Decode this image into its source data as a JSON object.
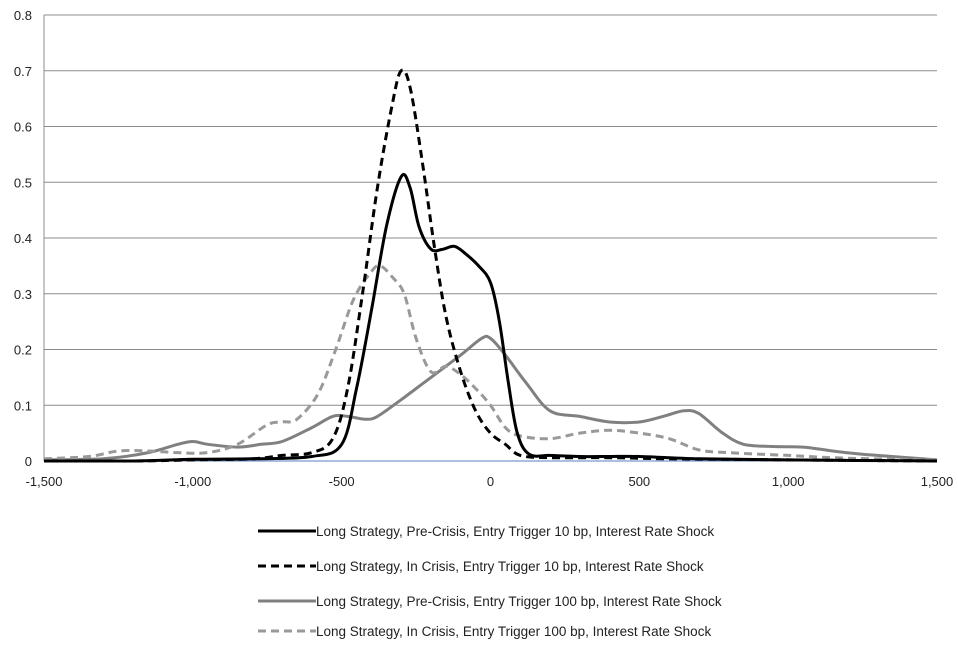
{
  "chart_data": {
    "type": "line",
    "title": "",
    "xlabel": "",
    "ylabel": "",
    "xlim": [
      -1500,
      1500
    ],
    "ylim": [
      0,
      0.8
    ],
    "x_ticks": [
      -1500,
      -1000,
      -500,
      0,
      500,
      1000,
      1500
    ],
    "x_tick_labels": [
      "-1,500",
      "-1,000",
      "-500",
      "0",
      "500",
      "1,000",
      "1,500"
    ],
    "y_ticks": [
      0,
      0.1,
      0.2,
      0.3,
      0.4,
      0.5,
      0.6,
      0.7,
      0.8
    ],
    "y_tick_labels": [
      "0",
      "0.1",
      "0.2",
      "0.3",
      "0.4",
      "0.5",
      "0.6",
      "0.7",
      "0.8"
    ],
    "grid": "horizontal",
    "legend_position": "bottom",
    "series": [
      {
        "name": "Long Strategy, Pre-Crisis, Entry Trigger 10 bp, Interest Rate Shock",
        "color": "#000000",
        "style": "solid",
        "points": [
          [
            -1500,
            0
          ],
          [
            -1200,
            0
          ],
          [
            -1000,
            0.003
          ],
          [
            -800,
            0.004
          ],
          [
            -600,
            0.008
          ],
          [
            -500,
            0.03
          ],
          [
            -450,
            0.13
          ],
          [
            -400,
            0.27
          ],
          [
            -350,
            0.42
          ],
          [
            -300,
            0.51
          ],
          [
            -270,
            0.49
          ],
          [
            -240,
            0.42
          ],
          [
            -200,
            0.38
          ],
          [
            -160,
            0.38
          ],
          [
            -120,
            0.385
          ],
          [
            -80,
            0.37
          ],
          [
            -40,
            0.35
          ],
          [
            0,
            0.32
          ],
          [
            30,
            0.25
          ],
          [
            60,
            0.14
          ],
          [
            90,
            0.05
          ],
          [
            130,
            0.012
          ],
          [
            200,
            0.01
          ],
          [
            300,
            0.008
          ],
          [
            400,
            0.008
          ],
          [
            500,
            0.008
          ],
          [
            700,
            0.004
          ],
          [
            1000,
            0.002
          ],
          [
            1500,
            0
          ]
        ]
      },
      {
        "name": "Long Strategy, In Crisis, Entry Trigger 10 bp, Interest Rate Shock",
        "color": "#000000",
        "style": "dashed",
        "points": [
          [
            -1500,
            0
          ],
          [
            -1200,
            0
          ],
          [
            -1000,
            0.002
          ],
          [
            -800,
            0.004
          ],
          [
            -700,
            0.01
          ],
          [
            -600,
            0.015
          ],
          [
            -530,
            0.04
          ],
          [
            -480,
            0.13
          ],
          [
            -430,
            0.3
          ],
          [
            -380,
            0.49
          ],
          [
            -330,
            0.64
          ],
          [
            -300,
            0.7
          ],
          [
            -270,
            0.67
          ],
          [
            -230,
            0.54
          ],
          [
            -190,
            0.39
          ],
          [
            -150,
            0.26
          ],
          [
            -100,
            0.16
          ],
          [
            -50,
            0.09
          ],
          [
            0,
            0.05
          ],
          [
            50,
            0.03
          ],
          [
            100,
            0.01
          ],
          [
            200,
            0.006
          ],
          [
            400,
            0.006
          ],
          [
            600,
            0.004
          ],
          [
            1000,
            0.002
          ],
          [
            1500,
            0
          ]
        ]
      },
      {
        "name": "Long Strategy, Pre-Crisis, Entry Trigger 100 bp, Interest Rate Shock",
        "color": "#808080",
        "style": "solid",
        "points": [
          [
            -1500,
            0.002
          ],
          [
            -1300,
            0.004
          ],
          [
            -1150,
            0.015
          ],
          [
            -1050,
            0.03
          ],
          [
            -1000,
            0.035
          ],
          [
            -950,
            0.03
          ],
          [
            -850,
            0.025
          ],
          [
            -770,
            0.03
          ],
          [
            -700,
            0.035
          ],
          [
            -600,
            0.06
          ],
          [
            -530,
            0.08
          ],
          [
            -480,
            0.08
          ],
          [
            -420,
            0.075
          ],
          [
            -380,
            0.08
          ],
          [
            -300,
            0.11
          ],
          [
            -200,
            0.15
          ],
          [
            -100,
            0.19
          ],
          [
            -30,
            0.22
          ],
          [
            0,
            0.22
          ],
          [
            50,
            0.19
          ],
          [
            120,
            0.14
          ],
          [
            200,
            0.09
          ],
          [
            300,
            0.08
          ],
          [
            400,
            0.07
          ],
          [
            500,
            0.07
          ],
          [
            580,
            0.08
          ],
          [
            650,
            0.09
          ],
          [
            700,
            0.085
          ],
          [
            780,
            0.05
          ],
          [
            850,
            0.03
          ],
          [
            950,
            0.026
          ],
          [
            1050,
            0.025
          ],
          [
            1150,
            0.018
          ],
          [
            1250,
            0.012
          ],
          [
            1350,
            0.008
          ],
          [
            1500,
            0.002
          ]
        ]
      },
      {
        "name": "Long Strategy, In Crisis, Entry Trigger 100 bp, Interest Rate Shock",
        "color": "#999999",
        "style": "dashed",
        "points": [
          [
            -1500,
            0.004
          ],
          [
            -1350,
            0.008
          ],
          [
            -1250,
            0.018
          ],
          [
            -1150,
            0.018
          ],
          [
            -1050,
            0.015
          ],
          [
            -950,
            0.015
          ],
          [
            -850,
            0.03
          ],
          [
            -750,
            0.065
          ],
          [
            -700,
            0.07
          ],
          [
            -650,
            0.075
          ],
          [
            -580,
            0.12
          ],
          [
            -520,
            0.2
          ],
          [
            -460,
            0.29
          ],
          [
            -400,
            0.34
          ],
          [
            -370,
            0.35
          ],
          [
            -330,
            0.33
          ],
          [
            -290,
            0.3
          ],
          [
            -250,
            0.22
          ],
          [
            -200,
            0.16
          ],
          [
            -150,
            0.17
          ],
          [
            -100,
            0.155
          ],
          [
            -50,
            0.13
          ],
          [
            0,
            0.1
          ],
          [
            50,
            0.06
          ],
          [
            100,
            0.045
          ],
          [
            200,
            0.04
          ],
          [
            300,
            0.05
          ],
          [
            400,
            0.055
          ],
          [
            500,
            0.05
          ],
          [
            600,
            0.04
          ],
          [
            700,
            0.02
          ],
          [
            800,
            0.015
          ],
          [
            1000,
            0.01
          ],
          [
            1200,
            0.005
          ],
          [
            1500,
            0.002
          ]
        ]
      }
    ]
  }
}
